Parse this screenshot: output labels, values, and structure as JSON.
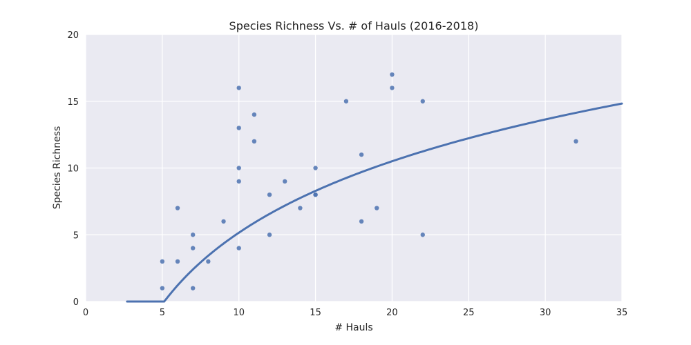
{
  "chart_data": {
    "type": "scatter",
    "title": "Species Richness Vs. # of Hauls (2016-2018)",
    "xlabel": "# Hauls",
    "ylabel": "Species Richness",
    "xlim": [
      0,
      35
    ],
    "ylim": [
      0,
      20
    ],
    "xticks": [
      0,
      5,
      10,
      15,
      20,
      25,
      30,
      35
    ],
    "yticks": [
      0,
      5,
      10,
      15,
      20
    ],
    "grid": true,
    "colors": {
      "plot_background": "#eaeaf2",
      "grid": "#ffffff",
      "series": "#4c72b0"
    },
    "series": [
      {
        "type": "scatter",
        "points": [
          [
            5,
            3
          ],
          [
            5,
            1
          ],
          [
            6,
            7
          ],
          [
            6,
            3
          ],
          [
            7,
            5
          ],
          [
            7,
            4
          ],
          [
            7,
            1
          ],
          [
            8,
            3
          ],
          [
            9,
            6
          ],
          [
            10,
            16
          ],
          [
            10,
            13
          ],
          [
            10,
            10
          ],
          [
            10,
            9
          ],
          [
            10,
            4
          ],
          [
            11,
            14
          ],
          [
            11,
            12
          ],
          [
            12,
            8
          ],
          [
            12,
            5
          ],
          [
            13,
            9
          ],
          [
            14,
            7
          ],
          [
            15,
            10
          ],
          [
            15,
            8
          ],
          [
            15,
            8
          ],
          [
            17,
            15
          ],
          [
            18,
            11
          ],
          [
            18,
            6
          ],
          [
            19,
            7
          ],
          [
            20,
            17
          ],
          [
            20,
            16
          ],
          [
            22,
            15
          ],
          [
            22,
            5
          ],
          [
            32,
            12
          ]
        ]
      },
      {
        "type": "line",
        "form": "logarithmic",
        "equation": "y = 7.72 * ln(x) - 12.62",
        "coefficients": {
          "a": 7.72,
          "b": -12.62
        },
        "x_range": [
          2.7,
          35
        ]
      }
    ]
  }
}
